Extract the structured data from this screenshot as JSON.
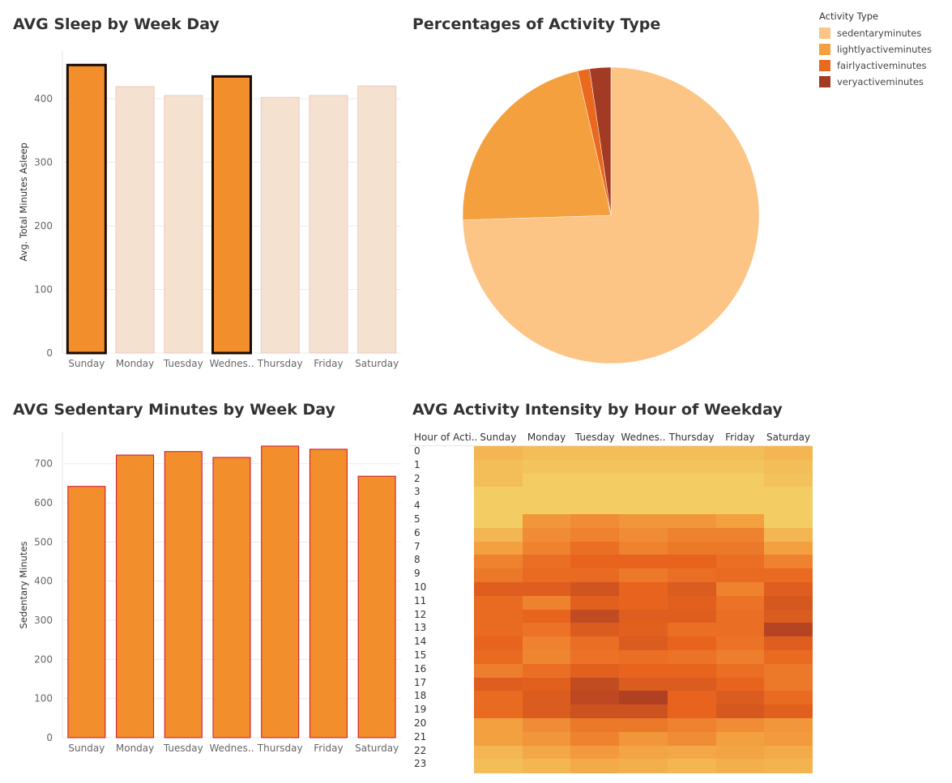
{
  "titles": {
    "sleep": "AVG Sleep by Week Day",
    "pie": "Percentages of Activity Type",
    "sedentary": "AVG Sedentary Minutes by Week Day",
    "heatmap": "AVG Activity Intensity by Hour of Weekday"
  },
  "legend": {
    "title": "Activity Type",
    "items": [
      {
        "label": "sedentaryminutes",
        "color": "#fdc585"
      },
      {
        "label": "lightlyactiveminutes",
        "color": "#f4a03e"
      },
      {
        "label": "fairlyactiveminutes",
        "color": "#e9691e"
      },
      {
        "label": "veryactiveminutes",
        "color": "#a33a24"
      }
    ]
  },
  "colors": {
    "bar": "#f38e2c",
    "bar_faded": "#f4e1d0",
    "bar_faded_edge": "#efc9c1",
    "bar_edge": "#c8102e",
    "highlight_edge": "#1a0b05",
    "grid": "#ececec"
  },
  "chart_data": [
    {
      "type": "bar",
      "title": "AVG Sleep by Week Day",
      "categories": [
        "Sunday",
        "Monday",
        "Tuesday",
        "Wednes..",
        "Thursday",
        "Friday",
        "Saturday"
      ],
      "values": [
        453,
        419,
        405,
        435,
        402,
        405,
        420
      ],
      "highlighted": [
        true,
        false,
        false,
        true,
        false,
        false,
        false
      ],
      "ylabel": "Avg. Total Minutes Asleep",
      "yticks": [
        0,
        100,
        200,
        300,
        400
      ],
      "ylim": [
        0,
        475
      ]
    },
    {
      "type": "pie",
      "title": "Percentages of Activity Type",
      "slices": [
        {
          "label": "sedentaryminutes",
          "value": 74.5
        },
        {
          "label": "lightlyactiveminutes",
          "value": 21.9
        },
        {
          "label": "fairlyactiveminutes",
          "value": 1.3
        },
        {
          "label": "veryactiveminutes",
          "value": 2.3
        }
      ]
    },
    {
      "type": "bar",
      "title": "AVG Sedentary Minutes by Week Day",
      "categories": [
        "Sunday",
        "Monday",
        "Tuesday",
        "Wednes..",
        "Thursday",
        "Friday",
        "Saturday"
      ],
      "values": [
        642,
        722,
        731,
        716,
        745,
        737,
        668
      ],
      "ylabel": "Sedentary Minutes",
      "yticks": [
        0,
        100,
        200,
        300,
        400,
        500,
        600,
        700
      ],
      "ylim": [
        0,
        780
      ]
    },
    {
      "type": "heatmap",
      "title": "AVG Activity Intensity by Hour of Weekday",
      "row_header": "Hour of Acti..",
      "columns": [
        "Sunday",
        "Monday",
        "Tuesday",
        "Wednes..",
        "Thursday",
        "Friday",
        "Saturday"
      ],
      "rows": [
        "0",
        "1",
        "2",
        "3",
        "4",
        "5",
        "6",
        "7",
        "8",
        "9",
        "10",
        "11",
        "12",
        "13",
        "14",
        "15",
        "16",
        "17",
        "18",
        "19",
        "20",
        "21",
        "22",
        "23"
      ],
      "values": [
        [
          0.2,
          0.15,
          0.15,
          0.15,
          0.15,
          0.15,
          0.2
        ],
        [
          0.15,
          0.1,
          0.1,
          0.1,
          0.1,
          0.1,
          0.15
        ],
        [
          0.15,
          0.05,
          0.05,
          0.05,
          0.05,
          0.05,
          0.12
        ],
        [
          0.05,
          0.05,
          0.05,
          0.05,
          0.05,
          0.05,
          0.05
        ],
        [
          0.05,
          0.05,
          0.05,
          0.05,
          0.05,
          0.05,
          0.05
        ],
        [
          0.05,
          0.4,
          0.45,
          0.4,
          0.4,
          0.35,
          0.05
        ],
        [
          0.2,
          0.45,
          0.5,
          0.45,
          0.5,
          0.5,
          0.2
        ],
        [
          0.35,
          0.5,
          0.6,
          0.5,
          0.55,
          0.55,
          0.35
        ],
        [
          0.5,
          0.6,
          0.65,
          0.65,
          0.65,
          0.6,
          0.5
        ],
        [
          0.55,
          0.62,
          0.62,
          0.55,
          0.6,
          0.62,
          0.62
        ],
        [
          0.7,
          0.7,
          0.78,
          0.65,
          0.72,
          0.5,
          0.7
        ],
        [
          0.62,
          0.5,
          0.68,
          0.65,
          0.68,
          0.58,
          0.75
        ],
        [
          0.62,
          0.65,
          0.85,
          0.7,
          0.7,
          0.6,
          0.72
        ],
        [
          0.62,
          0.58,
          0.72,
          0.68,
          0.6,
          0.6,
          0.92
        ],
        [
          0.65,
          0.5,
          0.6,
          0.72,
          0.65,
          0.58,
          0.7
        ],
        [
          0.62,
          0.48,
          0.58,
          0.6,
          0.58,
          0.52,
          0.62
        ],
        [
          0.52,
          0.6,
          0.68,
          0.65,
          0.65,
          0.6,
          0.55
        ],
        [
          0.7,
          0.68,
          0.85,
          0.72,
          0.72,
          0.65,
          0.55
        ],
        [
          0.62,
          0.72,
          0.88,
          0.95,
          0.65,
          0.72,
          0.62
        ],
        [
          0.62,
          0.72,
          0.8,
          0.8,
          0.65,
          0.75,
          0.68
        ],
        [
          0.35,
          0.45,
          0.55,
          0.55,
          0.5,
          0.45,
          0.4
        ],
        [
          0.35,
          0.4,
          0.5,
          0.4,
          0.45,
          0.35,
          0.38
        ],
        [
          0.2,
          0.3,
          0.38,
          0.32,
          0.3,
          0.32,
          0.28
        ],
        [
          0.15,
          0.2,
          0.28,
          0.25,
          0.2,
          0.25,
          0.22
        ]
      ],
      "value_range": [
        0,
        1
      ]
    }
  ]
}
